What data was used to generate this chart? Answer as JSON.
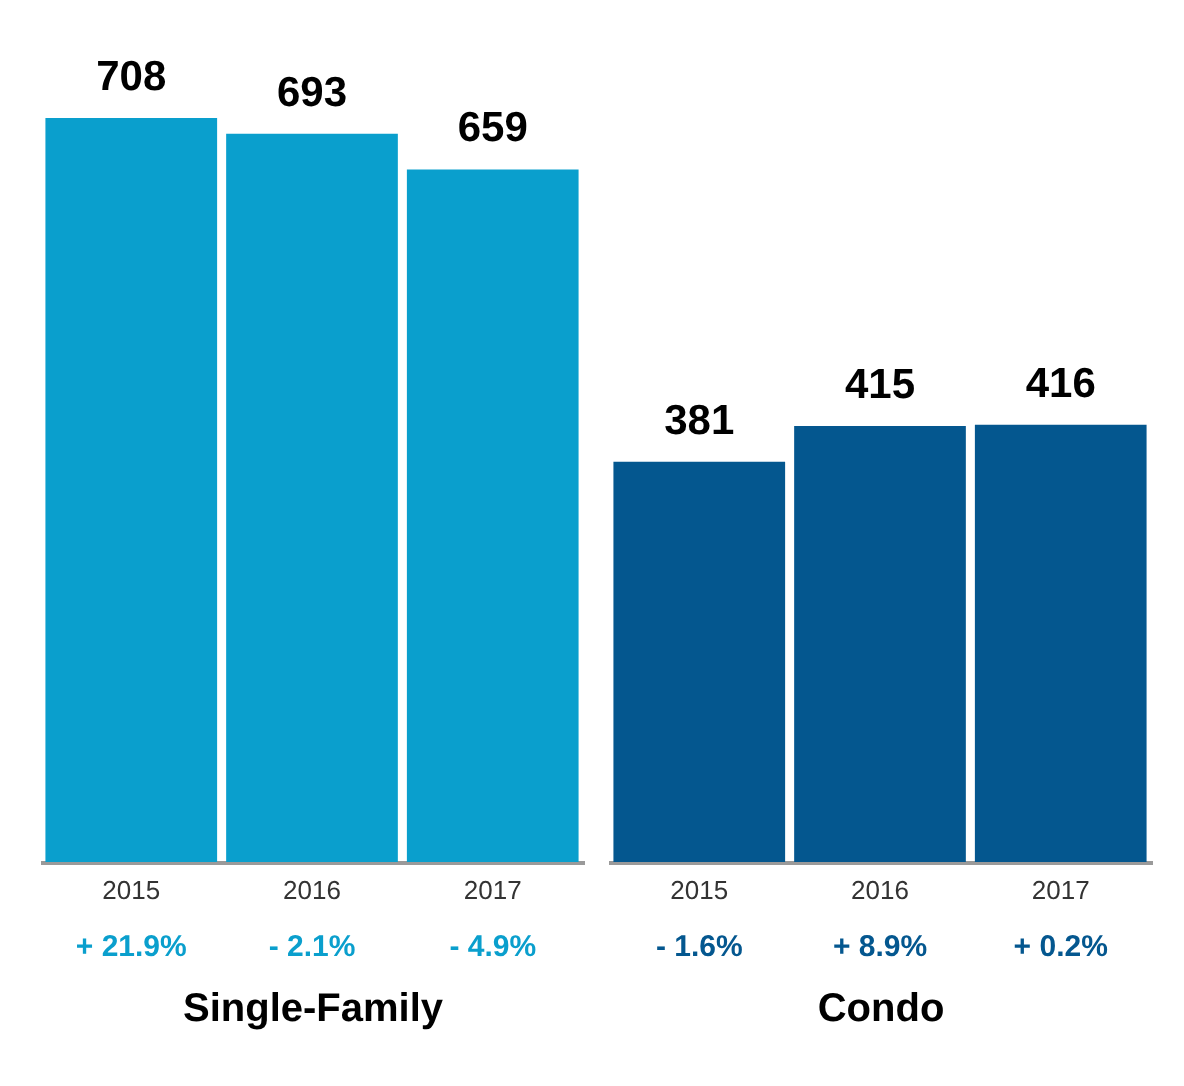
{
  "chart_data": [
    {
      "type": "bar",
      "xlabel": "Single-Family",
      "categories": [
        "2015",
        "2016",
        "2017"
      ],
      "values": [
        708,
        693,
        659
      ],
      "color": "#0a9fcd",
      "data_labels": true,
      "annotations": [
        "+ 21.9%",
        "- 2.1%",
        "- 4.9%"
      ]
    },
    {
      "type": "bar",
      "xlabel": "Condo",
      "categories": [
        "2015",
        "2016",
        "2017"
      ],
      "values": [
        381,
        415,
        416
      ],
      "color": "#04578f",
      "data_labels": true,
      "annotations": [
        "- 1.6%",
        "+ 8.9%",
        "+ 0.2%"
      ]
    }
  ]
}
